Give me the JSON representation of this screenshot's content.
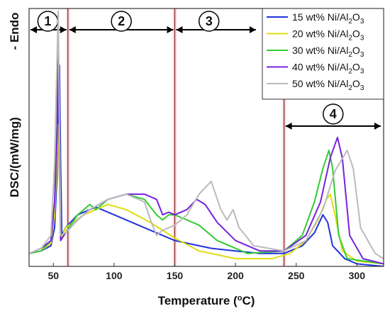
{
  "chart_data": {
    "type": "line",
    "xlabel": "Temperature (",
    "xlabel_sup": "o",
    "xlabel_unit": "C)",
    "ylabel": "DSC/(mW/mg)",
    "endo_label": "- Endo",
    "xlim": [
      30,
      322
    ],
    "ylim": [
      0,
      1
    ],
    "x_ticks": [
      50,
      100,
      150,
      200,
      250,
      300
    ],
    "grid": false,
    "legend_position": "top-right",
    "regions": [
      {
        "label": "1",
        "start": 30,
        "end": 62
      },
      {
        "label": "2",
        "start": 62,
        "end": 150
      },
      {
        "label": "3",
        "start": 150,
        "end": 240
      },
      {
        "label": "4",
        "start": 240,
        "end": 322
      }
    ],
    "boundaries": [
      62,
      150,
      240
    ],
    "series": [
      {
        "name": "15 wt% Ni/Al2O3",
        "name_parts": [
          "15 wt% Ni/Al",
          "2",
          "O",
          "3"
        ],
        "color": "#2233dd",
        "points": [
          [
            30,
            0.05
          ],
          [
            40,
            0.06
          ],
          [
            48,
            0.08
          ],
          [
            51,
            0.15
          ],
          [
            53,
            0.35
          ],
          [
            54,
            0.6
          ],
          [
            55,
            0.78
          ],
          [
            56,
            0.4
          ],
          [
            57,
            0.12
          ],
          [
            60,
            0.15
          ],
          [
            70,
            0.2
          ],
          [
            85,
            0.23
          ],
          [
            100,
            0.2
          ],
          [
            120,
            0.16
          ],
          [
            150,
            0.1
          ],
          [
            180,
            0.07
          ],
          [
            200,
            0.06
          ],
          [
            220,
            0.05
          ],
          [
            240,
            0.05
          ],
          [
            255,
            0.08
          ],
          [
            265,
            0.13
          ],
          [
            272,
            0.2
          ],
          [
            276,
            0.17
          ],
          [
            280,
            0.08
          ],
          [
            290,
            0.03
          ],
          [
            300,
            0.01
          ],
          [
            322,
            0.0
          ]
        ]
      },
      {
        "name": "20 wt% Ni/Al2O3",
        "name_parts": [
          "20 wt% Ni/Al",
          "2",
          "O",
          "3"
        ],
        "color": "#dddd11",
        "points": [
          [
            30,
            0.05
          ],
          [
            40,
            0.06
          ],
          [
            48,
            0.09
          ],
          [
            51,
            0.2
          ],
          [
            53,
            0.42
          ],
          [
            54,
            0.55
          ],
          [
            55,
            0.35
          ],
          [
            56,
            0.1
          ],
          [
            60,
            0.15
          ],
          [
            75,
            0.2
          ],
          [
            95,
            0.24
          ],
          [
            110,
            0.22
          ],
          [
            130,
            0.17
          ],
          [
            150,
            0.11
          ],
          [
            170,
            0.06
          ],
          [
            200,
            0.03
          ],
          [
            230,
            0.03
          ],
          [
            245,
            0.05
          ],
          [
            258,
            0.1
          ],
          [
            268,
            0.18
          ],
          [
            275,
            0.26
          ],
          [
            278,
            0.28
          ],
          [
            282,
            0.2
          ],
          [
            288,
            0.06
          ],
          [
            300,
            0.02
          ],
          [
            322,
            0.01
          ]
        ]
      },
      {
        "name": "30 wt% Ni/Al2O3",
        "name_parts": [
          "30 wt% Ni/Al",
          "2",
          "O",
          "3"
        ],
        "color": "#33cc33",
        "points": [
          [
            30,
            0.05
          ],
          [
            40,
            0.06
          ],
          [
            48,
            0.1
          ],
          [
            51,
            0.25
          ],
          [
            53,
            0.55
          ],
          [
            54,
            0.88
          ],
          [
            55,
            0.5
          ],
          [
            56,
            0.12
          ],
          [
            60,
            0.13
          ],
          [
            70,
            0.2
          ],
          [
            80,
            0.24
          ],
          [
            85,
            0.22
          ],
          [
            95,
            0.26
          ],
          [
            110,
            0.28
          ],
          [
            125,
            0.26
          ],
          [
            135,
            0.2
          ],
          [
            140,
            0.18
          ],
          [
            145,
            0.2
          ],
          [
            150,
            0.2
          ],
          [
            160,
            0.18
          ],
          [
            170,
            0.16
          ],
          [
            185,
            0.1
          ],
          [
            210,
            0.05
          ],
          [
            240,
            0.06
          ],
          [
            255,
            0.12
          ],
          [
            265,
            0.25
          ],
          [
            272,
            0.38
          ],
          [
            277,
            0.45
          ],
          [
            280,
            0.38
          ],
          [
            285,
            0.12
          ],
          [
            292,
            0.03
          ],
          [
            322,
            0.01
          ]
        ]
      },
      {
        "name": "40 wt% Ni/Al2O3",
        "name_parts": [
          "40 wt% Ni/Al",
          "2",
          "O",
          "3"
        ],
        "color": "#7722dd",
        "points": [
          [
            30,
            0.05
          ],
          [
            40,
            0.07
          ],
          [
            48,
            0.1
          ],
          [
            51,
            0.25
          ],
          [
            53,
            0.5
          ],
          [
            54,
            0.8
          ],
          [
            55,
            0.45
          ],
          [
            56,
            0.1
          ],
          [
            60,
            0.13
          ],
          [
            70,
            0.18
          ],
          [
            80,
            0.22
          ],
          [
            95,
            0.26
          ],
          [
            110,
            0.28
          ],
          [
            125,
            0.28
          ],
          [
            135,
            0.26
          ],
          [
            140,
            0.2
          ],
          [
            145,
            0.21
          ],
          [
            150,
            0.2
          ],
          [
            160,
            0.22
          ],
          [
            168,
            0.26
          ],
          [
            175,
            0.24
          ],
          [
            185,
            0.17
          ],
          [
            200,
            0.1
          ],
          [
            220,
            0.06
          ],
          [
            240,
            0.06
          ],
          [
            258,
            0.12
          ],
          [
            270,
            0.25
          ],
          [
            278,
            0.42
          ],
          [
            284,
            0.5
          ],
          [
            288,
            0.42
          ],
          [
            294,
            0.12
          ],
          [
            305,
            0.03
          ],
          [
            322,
            0.01
          ]
        ]
      },
      {
        "name": "50 wt% Ni/Al2O3",
        "name_parts": [
          "50 wt% Ni/Al",
          "2",
          "O",
          "3"
        ],
        "color": "#bbbbbb",
        "points": [
          [
            30,
            0.05
          ],
          [
            40,
            0.07
          ],
          [
            48,
            0.12
          ],
          [
            51,
            0.4
          ],
          [
            53,
            0.8
          ],
          [
            54,
            0.99
          ],
          [
            55,
            0.55
          ],
          [
            56,
            0.12
          ],
          [
            60,
            0.13
          ],
          [
            70,
            0.18
          ],
          [
            80,
            0.22
          ],
          [
            95,
            0.26
          ],
          [
            110,
            0.28
          ],
          [
            125,
            0.25
          ],
          [
            130,
            0.18
          ],
          [
            135,
            0.12
          ],
          [
            140,
            0.14
          ],
          [
            150,
            0.16
          ],
          [
            160,
            0.2
          ],
          [
            170,
            0.28
          ],
          [
            180,
            0.33
          ],
          [
            188,
            0.22
          ],
          [
            193,
            0.18
          ],
          [
            198,
            0.22
          ],
          [
            203,
            0.15
          ],
          [
            215,
            0.08
          ],
          [
            240,
            0.06
          ],
          [
            258,
            0.1
          ],
          [
            272,
            0.22
          ],
          [
            282,
            0.37
          ],
          [
            292,
            0.45
          ],
          [
            297,
            0.38
          ],
          [
            303,
            0.15
          ],
          [
            315,
            0.05
          ],
          [
            322,
            0.03
          ]
        ]
      }
    ]
  }
}
